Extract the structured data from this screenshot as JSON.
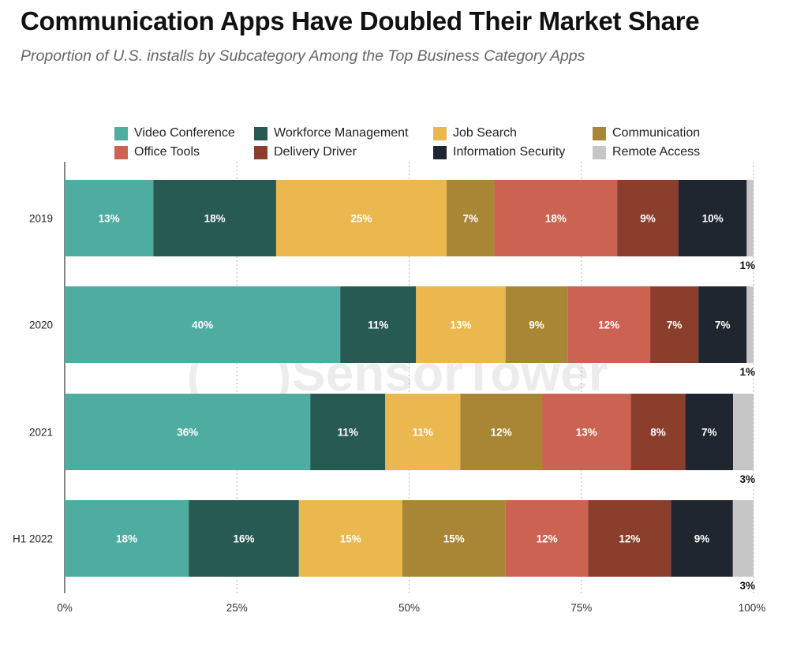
{
  "chart_data": {
    "type": "bar",
    "orientation": "horizontal",
    "stacked": true,
    "title": "Communication Apps Have Doubled Their Market Share",
    "subtitle": "Proportion of U.S. installs by Subcategory Among the Top Business Category Apps",
    "categories": [
      "2019",
      "2020",
      "2021",
      "H1 2022"
    ],
    "xlim": [
      0,
      100
    ],
    "x_ticks": [
      "0%",
      "25%",
      "50%",
      "75%",
      "100%"
    ],
    "grid": "dotted vertical",
    "legend_position": "top",
    "series": [
      {
        "name": "Video Conference",
        "color": "#4eaca0",
        "values": [
          13,
          40,
          36,
          18
        ],
        "labels": [
          "13%",
          "40%",
          "36%",
          "18%"
        ]
      },
      {
        "name": "Workforce Management",
        "color": "#285a54",
        "values": [
          18,
          11,
          11,
          16
        ],
        "labels": [
          "18%",
          "11%",
          "11%",
          "16%"
        ]
      },
      {
        "name": "Job Search",
        "color": "#eab84f",
        "values": [
          25,
          13,
          11,
          15
        ],
        "labels": [
          "25%",
          "13%",
          "11%",
          "15%"
        ]
      },
      {
        "name": "Communication",
        "color": "#a98636",
        "values": [
          7,
          9,
          12,
          15
        ],
        "labels": [
          "7%",
          "9%",
          "12%",
          "15%"
        ]
      },
      {
        "name": "Office Tools",
        "color": "#cb6252",
        "values": [
          18,
          12,
          13,
          12
        ],
        "labels": [
          "18%",
          "12%",
          "13%",
          "12%"
        ]
      },
      {
        "name": "Delivery Driver",
        "color": "#8c3e2d",
        "values": [
          9,
          7,
          8,
          12
        ],
        "labels": [
          "9%",
          "7%",
          "8%",
          "12%"
        ]
      },
      {
        "name": "Information Security",
        "color": "#1f2630",
        "values": [
          10,
          7,
          7,
          9
        ],
        "labels": [
          "10%",
          "7%",
          "7%",
          "9%"
        ]
      },
      {
        "name": "Remote Access",
        "color": "#c6c6c6",
        "values": [
          1,
          1,
          3,
          3
        ],
        "labels": [
          "1%",
          "1%",
          "3%",
          "3%"
        ]
      }
    ],
    "watermark": "SensorTower"
  }
}
